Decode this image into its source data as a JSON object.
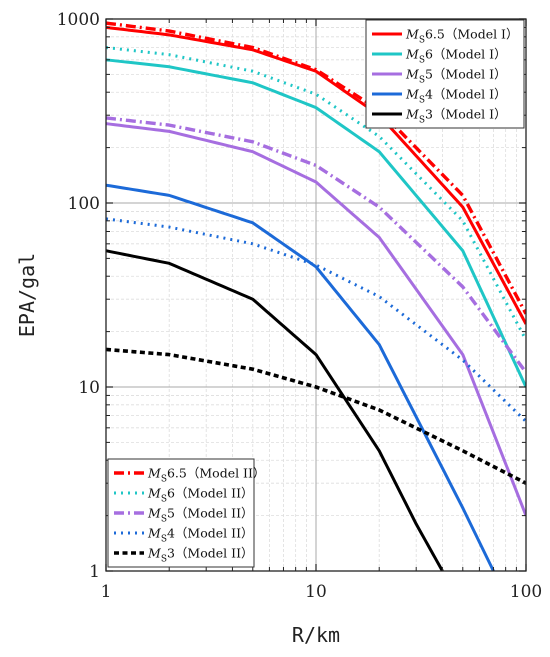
{
  "chart_data": {
    "type": "line",
    "xlabel": "R/km",
    "ylabel": "EPA/gal",
    "x_scale": "log",
    "y_scale": "log",
    "xlim": [
      1,
      100
    ],
    "ylim": [
      1,
      1000
    ],
    "x_ticks": [
      "1",
      "10",
      "100"
    ],
    "y_ticks": [
      "1",
      "10",
      "100",
      "1000"
    ],
    "grid": true,
    "legends": [
      {
        "placement": "top-right",
        "entries": [
          {
            "prefix": "M",
            "sub": "S",
            "magnitude": "6.5",
            "model": "（Model I）",
            "color": "#ff0000",
            "style": "solid"
          },
          {
            "prefix": "M",
            "sub": "S",
            "magnitude": "6",
            "model": "（Model I）",
            "color": "#1fc6c6",
            "style": "solid"
          },
          {
            "prefix": "M",
            "sub": "S",
            "magnitude": "5",
            "model": "（Model I）",
            "color": "#a66ee0",
            "style": "solid"
          },
          {
            "prefix": "M",
            "sub": "S",
            "magnitude": "4",
            "model": "（Model I）",
            "color": "#1c6ad8",
            "style": "solid"
          },
          {
            "prefix": "M",
            "sub": "S",
            "magnitude": "3",
            "model": "（Model I）",
            "color": "#000000",
            "style": "solid"
          }
        ]
      },
      {
        "placement": "bottom-left",
        "entries": [
          {
            "prefix": "M",
            "sub": "S",
            "magnitude": "6.5",
            "model": "（Model II）",
            "color": "#ff0000",
            "style": "dashdot"
          },
          {
            "prefix": "M",
            "sub": "S",
            "magnitude": "6",
            "model": "（Model II）",
            "color": "#1fc6c6",
            "style": "dotted"
          },
          {
            "prefix": "M",
            "sub": "S",
            "magnitude": "5",
            "model": "（Model II）",
            "color": "#a66ee0",
            "style": "dashdot"
          },
          {
            "prefix": "M",
            "sub": "S",
            "magnitude": "4",
            "model": "（Model II）",
            "color": "#1c6ad8",
            "style": "dotted"
          },
          {
            "prefix": "M",
            "sub": "S",
            "magnitude": "3",
            "model": "（Model II）",
            "color": "#000000",
            "style": "dashed"
          }
        ]
      }
    ],
    "series": [
      {
        "id": "ms65-i",
        "color": "#ff0000",
        "style": "solid",
        "x": [
          1,
          2,
          5,
          10,
          20,
          50,
          100
        ],
        "y": [
          900,
          820,
          680,
          520,
          300,
          95,
          22
        ]
      },
      {
        "id": "ms6-i",
        "color": "#1fc6c6",
        "style": "solid",
        "x": [
          1,
          2,
          5,
          10,
          20,
          50,
          100
        ],
        "y": [
          600,
          550,
          450,
          330,
          190,
          55,
          10
        ]
      },
      {
        "id": "ms5-i",
        "color": "#a66ee0",
        "style": "solid",
        "x": [
          1,
          2,
          5,
          10,
          20,
          50,
          100
        ],
        "y": [
          270,
          245,
          190,
          130,
          65,
          15,
          2
        ]
      },
      {
        "id": "ms4-i",
        "color": "#1c6ad8",
        "style": "solid",
        "x": [
          1,
          2,
          5,
          10,
          20,
          50,
          70
        ],
        "y": [
          125,
          110,
          78,
          45,
          17,
          2.2,
          1
        ]
      },
      {
        "id": "ms3-i",
        "color": "#000000",
        "style": "solid",
        "x": [
          1,
          2,
          5,
          10,
          20,
          30,
          40
        ],
        "y": [
          55,
          47,
          30,
          15,
          4.5,
          1.8,
          1
        ]
      },
      {
        "id": "ms65-ii",
        "color": "#ff0000",
        "style": "dashdot",
        "x": [
          1,
          2,
          5,
          10,
          20,
          50,
          100
        ],
        "y": [
          950,
          860,
          700,
          530,
          320,
          110,
          25
        ]
      },
      {
        "id": "ms6-ii",
        "color": "#1fc6c6",
        "style": "dotted",
        "x": [
          1,
          2,
          5,
          10,
          20,
          50,
          100
        ],
        "y": [
          700,
          640,
          520,
          390,
          230,
          80,
          18
        ]
      },
      {
        "id": "ms5-ii",
        "color": "#a66ee0",
        "style": "dashdot",
        "x": [
          1,
          2,
          5,
          10,
          20,
          50,
          100
        ],
        "y": [
          290,
          265,
          215,
          160,
          95,
          35,
          12
        ]
      },
      {
        "id": "ms4-ii",
        "color": "#1c6ad8",
        "style": "dotted",
        "x": [
          1,
          2,
          5,
          10,
          20,
          50,
          100
        ],
        "y": [
          82,
          74,
          60,
          46,
          31,
          14,
          6.5
        ]
      },
      {
        "id": "ms3-ii",
        "color": "#000000",
        "style": "dashed",
        "x": [
          1,
          2,
          5,
          10,
          20,
          50,
          100
        ],
        "y": [
          16,
          15,
          12.5,
          10,
          7.5,
          4.5,
          3
        ]
      }
    ]
  }
}
